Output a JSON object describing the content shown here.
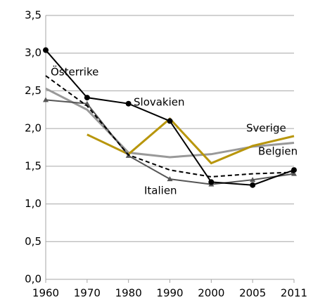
{
  "chart_data": {
    "type": "line",
    "categories": [
      "1960",
      "1970",
      "1980",
      "1990",
      "2000",
      "2005",
      "2011"
    ],
    "series": [
      {
        "name": "Belgien",
        "color": "#999999",
        "width": 3,
        "values": [
          2.53,
          2.25,
          1.68,
          1.62,
          1.66,
          1.76,
          1.81
        ]
      },
      {
        "name": "Sverige",
        "color": "#b8960c",
        "width": 3,
        "values": [
          null,
          1.92,
          1.66,
          2.13,
          1.54,
          1.77,
          1.9
        ]
      },
      {
        "name": "Italien",
        "color": "#555555",
        "width": 2,
        "marker": "triangle",
        "values": [
          2.38,
          2.33,
          1.64,
          1.33,
          1.26,
          1.32,
          1.4
        ]
      },
      {
        "name": "Österrike",
        "color": "#000000",
        "width": 2,
        "dash": true,
        "values": [
          2.7,
          2.3,
          1.65,
          1.45,
          1.36,
          1.4,
          1.42
        ]
      },
      {
        "name": "Slovakien",
        "color": "#000000",
        "width": 2,
        "marker": "circle",
        "values": [
          3.04,
          2.41,
          2.33,
          2.1,
          1.29,
          1.25,
          1.45
        ]
      }
    ],
    "ylim": [
      0,
      3.5
    ],
    "yticks": [
      {
        "value": 0,
        "label": "0,0"
      },
      {
        "value": 0.5,
        "label": "0,5"
      },
      {
        "value": 1,
        "label": "1,0"
      },
      {
        "value": 1.5,
        "label": "1,5"
      },
      {
        "value": 2,
        "label": "2,0"
      },
      {
        "value": 2.5,
        "label": "2,5"
      },
      {
        "value": 3,
        "label": "3,0"
      },
      {
        "value": 3.5,
        "label": "3,5"
      }
    ],
    "grid": true
  }
}
